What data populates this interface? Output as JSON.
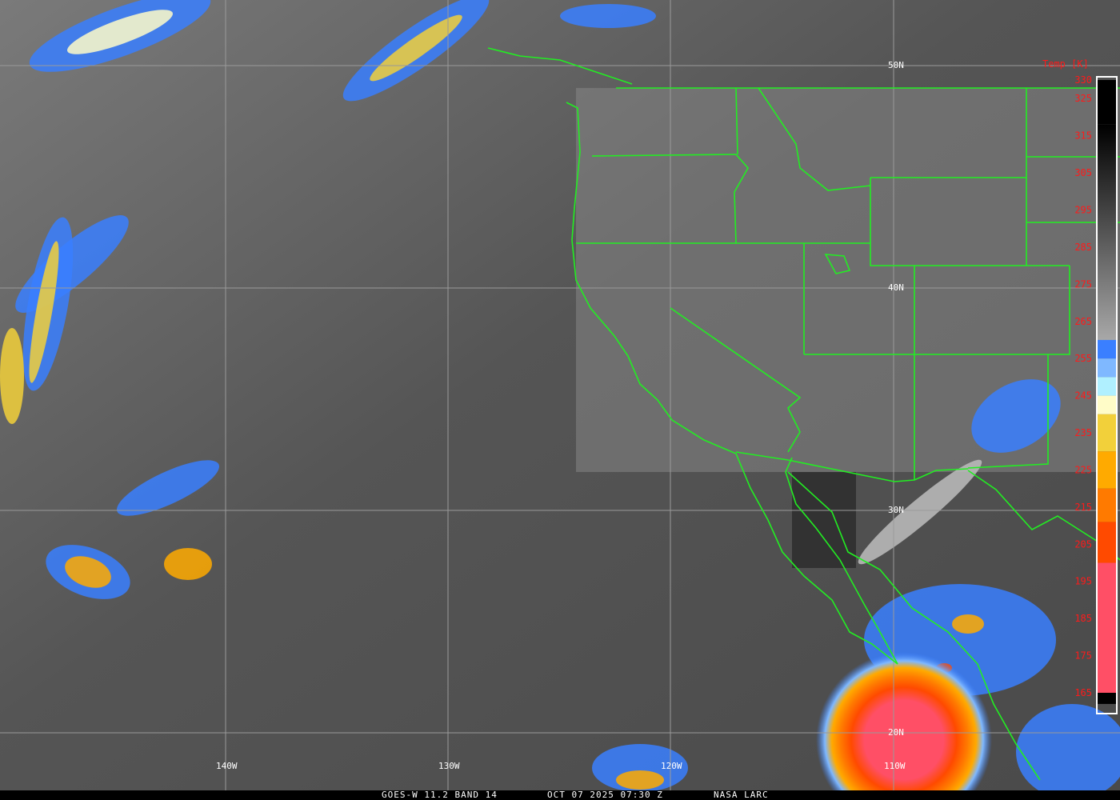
{
  "caption": {
    "satellite": "GOES-W 11.2 BAND 14",
    "datetime": "OCT 07 2025 07:30 Z",
    "credit": "NASA LARC"
  },
  "grid": {
    "latitudes": [
      "50N",
      "40N",
      "30N",
      "20N"
    ],
    "longitudes": [
      "140W",
      "130W",
      "120W",
      "110W"
    ]
  },
  "colorbar": {
    "title": "Temp [K]",
    "range": [
      165,
      330
    ],
    "ticks": [
      "330",
      "325",
      "315",
      "305",
      "295",
      "285",
      "275",
      "265",
      "255",
      "245",
      "235",
      "225",
      "215",
      "205",
      "195",
      "185",
      "175",
      "165"
    ],
    "segments": [
      {
        "from": 330,
        "to": 318,
        "color": "#000000"
      },
      {
        "from": 318,
        "to": 260,
        "color": "gradient-black-to-gray"
      },
      {
        "from": 260,
        "to": 255,
        "color": "#3a7fff"
      },
      {
        "from": 255,
        "to": 250,
        "color": "#7fb8ff"
      },
      {
        "from": 250,
        "to": 245,
        "color": "#b0f0ff"
      },
      {
        "from": 245,
        "to": 240,
        "color": "#fffcc8"
      },
      {
        "from": 240,
        "to": 230,
        "color": "#f2d03a"
      },
      {
        "from": 230,
        "to": 220,
        "color": "#ffaa00"
      },
      {
        "from": 220,
        "to": 211,
        "color": "#ff7a00"
      },
      {
        "from": 211,
        "to": 200,
        "color": "#ff4a00"
      },
      {
        "from": 200,
        "to": 165,
        "color": "#ff4f66"
      },
      {
        "from": 165,
        "to": 162,
        "color": "#000000"
      }
    ]
  },
  "colors": {
    "boundaries": "#22ee22",
    "grid": "#9a9a9a",
    "ticks": "#ff1a1a"
  }
}
